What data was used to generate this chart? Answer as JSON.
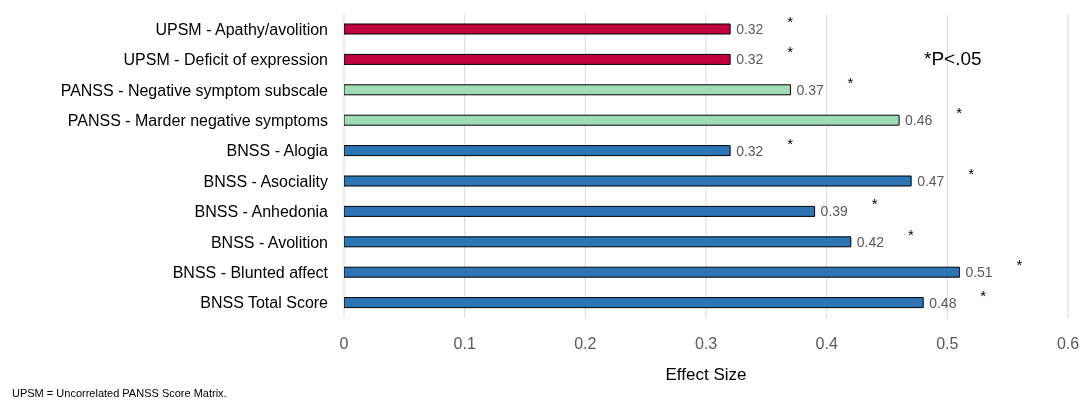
{
  "chart_data": {
    "type": "bar",
    "orientation": "horizontal",
    "xlabel": "Effect Size",
    "categories": [
      "UPSM - Apathy/avolition",
      "UPSM - Deficit of expression",
      "PANSS - Negative symptom subscale",
      "PANSS - Marder negative symptoms",
      "BNSS - Alogia",
      "BNSS - Asociality",
      "BNSS - Anhedonia",
      "BNSS -  Avolition",
      "BNSS - Blunted affect",
      "BNSS Total Score"
    ],
    "values": [
      0.32,
      0.32,
      0.37,
      0.46,
      0.32,
      0.47,
      0.39,
      0.42,
      0.51,
      0.48
    ],
    "colors": [
      "#c0003f",
      "#c0003f",
      "#a0dcb8",
      "#a0dcb8",
      "#2e75b6",
      "#2e75b6",
      "#2e75b6",
      "#2e75b6",
      "#2e75b6",
      "#2e75b6"
    ],
    "xlim": [
      0,
      0.6
    ],
    "xticks": [
      0,
      0.1,
      0.2,
      0.3,
      0.4,
      0.5,
      0.6
    ],
    "grid": "x",
    "data_labels": true,
    "legend": false,
    "annotations": [
      "*",
      "*",
      "*",
      "*",
      "*",
      "*",
      "*",
      "*",
      "*",
      "*",
      "*P<.05",
      "UPSM = Uncorrelated PANSS Score Matrix."
    ]
  }
}
